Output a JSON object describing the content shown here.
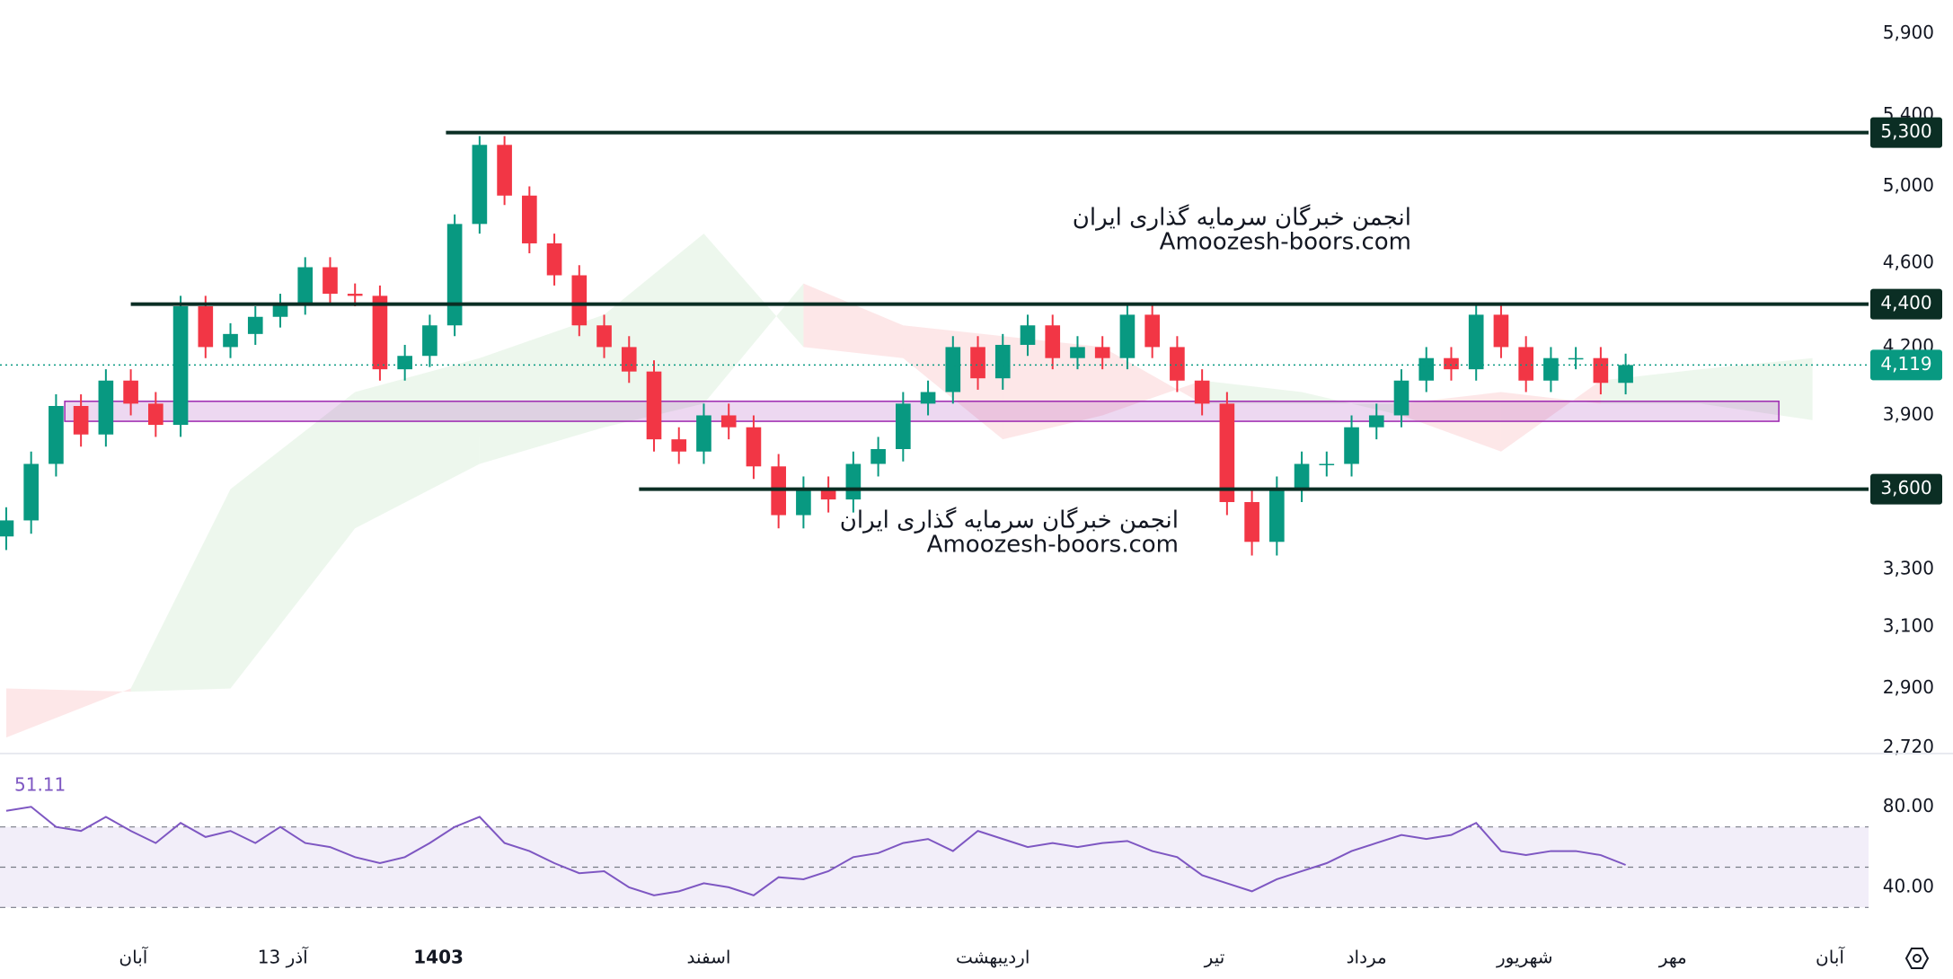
{
  "chart_data": [
    {
      "type": "candlestick",
      "log_scale": true,
      "ylim": [
        2705,
        6120
      ],
      "xlim": [
        -0.25,
        74.75
      ],
      "yticks": [
        {
          "value": 5900,
          "label": "5,900"
        },
        {
          "value": 5400,
          "label": "5,400"
        },
        {
          "value": 5000,
          "label": "5,000"
        },
        {
          "value": 4600,
          "label": "4,600"
        },
        {
          "value": 4200,
          "label": "4,200"
        },
        {
          "value": 3900,
          "label": "3,900"
        },
        {
          "value": 3300,
          "label": "3,300"
        },
        {
          "value": 3100,
          "label": "3,100"
        },
        {
          "value": 2900,
          "label": "2,900"
        },
        {
          "value": 2720,
          "label": "2,720"
        }
      ],
      "xticks": [
        {
          "value": 5.1,
          "label": "آبان"
        },
        {
          "value": 11.1,
          "label": "13 آذر"
        },
        {
          "value": 17.35,
          "label": "1403",
          "bold": true
        },
        {
          "value": 28.2,
          "label": "اسفند"
        },
        {
          "value": 39.6,
          "label": "اردیبهشت"
        },
        {
          "value": 48.5,
          "label": "تیر"
        },
        {
          "value": 54.6,
          "label": "مرداد"
        },
        {
          "value": 60.95,
          "label": "شهریور"
        },
        {
          "value": 66.9,
          "label": "مهر"
        },
        {
          "value": 73.2,
          "label": "آبان"
        }
      ],
      "up_color": "#089981",
      "down_color": "#f23645",
      "open": [
        3420,
        3480,
        3700,
        3940,
        3820,
        4050,
        3950,
        3860,
        4390,
        4200,
        4260,
        4340,
        4400,
        4580,
        4450,
        4440,
        4100,
        4160,
        4300,
        4800,
        5230,
        4950,
        4700,
        4540,
        4300,
        4200,
        4090,
        3800,
        3750,
        3900,
        3850,
        3690,
        3500,
        3600,
        3560,
        3700,
        3760,
        3950,
        4000,
        4200,
        4060,
        4210,
        4300,
        4150,
        4200,
        4150,
        4350,
        4200,
        4050,
        3950,
        3550,
        3400,
        3600,
        3700,
        3700,
        3850,
        3900,
        4050,
        4150,
        4100,
        4350,
        4200,
        4050,
        4150,
        4150,
        4040
      ],
      "high": [
        3530,
        3750,
        3990,
        3990,
        4100,
        4100,
        4000,
        4440,
        4440,
        4310,
        4390,
        4450,
        4630,
        4630,
        4500,
        4490,
        4210,
        4350,
        4850,
        5280,
        5280,
        5000,
        4750,
        4590,
        4350,
        4250,
        4140,
        3850,
        3950,
        3950,
        3900,
        3740,
        3650,
        3650,
        3750,
        3810,
        4000,
        4050,
        4250,
        4250,
        4260,
        4350,
        4350,
        4250,
        4250,
        4400,
        4400,
        4250,
        4100,
        4000,
        3600,
        3650,
        3750,
        3750,
        3900,
        3950,
        4100,
        4200,
        4200,
        4400,
        4400,
        4250,
        4200,
        4200,
        4200,
        4170
      ],
      "low": [
        3370,
        3430,
        3650,
        3770,
        3770,
        3900,
        3810,
        3810,
        4150,
        4150,
        4210,
        4290,
        4350,
        4400,
        4390,
        4050,
        4050,
        4110,
        4250,
        4750,
        4900,
        4650,
        4490,
        4250,
        4150,
        4040,
        3750,
        3700,
        3700,
        3800,
        3640,
        3450,
        3450,
        3510,
        3510,
        3650,
        3710,
        3900,
        3950,
        4010,
        4010,
        4160,
        4100,
        4100,
        4100,
        4100,
        4150,
        4000,
        3900,
        3500,
        3350,
        3350,
        3550,
        3650,
        3650,
        3800,
        3850,
        4000,
        4050,
        4050,
        4150,
        4000,
        4000,
        4100,
        3990,
        3990
      ],
      "close": [
        3480,
        3700,
        3940,
        3820,
        4050,
        3950,
        3860,
        4390,
        4200,
        4260,
        4340,
        4400,
        4580,
        4450,
        4440,
        4100,
        4160,
        4300,
        4800,
        5230,
        4950,
        4700,
        4540,
        4300,
        4200,
        4090,
        3800,
        3750,
        3900,
        3850,
        3690,
        3500,
        3600,
        3560,
        3700,
        3760,
        3950,
        4000,
        4200,
        4060,
        4210,
        4300,
        4150,
        4200,
        4150,
        4350,
        4200,
        4050,
        3950,
        3550,
        3400,
        3600,
        3700,
        3700,
        3850,
        3900,
        4050,
        4150,
        4100,
        4350,
        4200,
        4050,
        4150,
        4150,
        4040,
        4119
      ],
      "cloud": {
        "up_color": "#4caf50",
        "down_color": "#f23645",
        "x": [
          0,
          5,
          9,
          14,
          19,
          24,
          28,
          32,
          36,
          40,
          44,
          48,
          52,
          56,
          60,
          64,
          68,
          72.5
        ],
        "span_a": [
          2750,
          2900,
          3600,
          4000,
          4150,
          4350,
          4750,
          4200,
          4150,
          3800,
          3900,
          4050,
          4000,
          3900,
          3750,
          4050,
          4100,
          4150
        ],
        "span_b": [
          2900,
          2890,
          2900,
          3450,
          3700,
          3850,
          3950,
          4500,
          4300,
          4250,
          4200,
          3950,
          3950,
          3950,
          4000,
          3950,
          3950,
          3880
        ]
      },
      "levels": [
        {
          "value": 5300,
          "label": "5,300",
          "start_x": 17.65
        },
        {
          "value": 4400,
          "label": "4,400",
          "start_x": 5.0
        },
        {
          "value": 3600,
          "label": "3,600",
          "start_x": 25.4
        }
      ],
      "level_color": "#0b2e24",
      "last": {
        "value": 4119,
        "label": "4,119",
        "color": "#089981"
      },
      "zone": {
        "low": 3875,
        "high": 3960,
        "x0": 2.35,
        "x1": 71.15,
        "color": "#9c27b0"
      },
      "watermark": [
        "انجمن خبرگان سرمایه گذاری ایران",
        "Amoozesh-boors.com"
      ]
    },
    {
      "type": "line",
      "color": "#7e57c2",
      "ylim": [
        23,
        106
      ],
      "yticks": [
        {
          "value": 80,
          "label": "80.00"
        },
        {
          "value": 40,
          "label": "40.00"
        }
      ],
      "levels": [
        70,
        50,
        30
      ],
      "values": [
        78,
        80,
        70,
        68,
        75,
        68,
        62,
        72,
        65,
        68,
        62,
        70,
        62,
        60,
        55,
        52,
        55,
        62,
        70,
        75,
        62,
        58,
        52,
        47,
        48,
        40,
        36,
        38,
        42,
        40,
        36,
        45,
        44,
        48,
        55,
        57,
        62,
        64,
        58,
        68,
        64,
        60,
        62,
        60,
        62,
        63,
        58,
        55,
        46,
        42,
        38,
        44,
        48,
        52,
        58,
        62,
        66,
        64,
        66,
        72,
        58,
        56,
        58,
        58,
        56,
        51.11
      ]
    }
  ]
}
